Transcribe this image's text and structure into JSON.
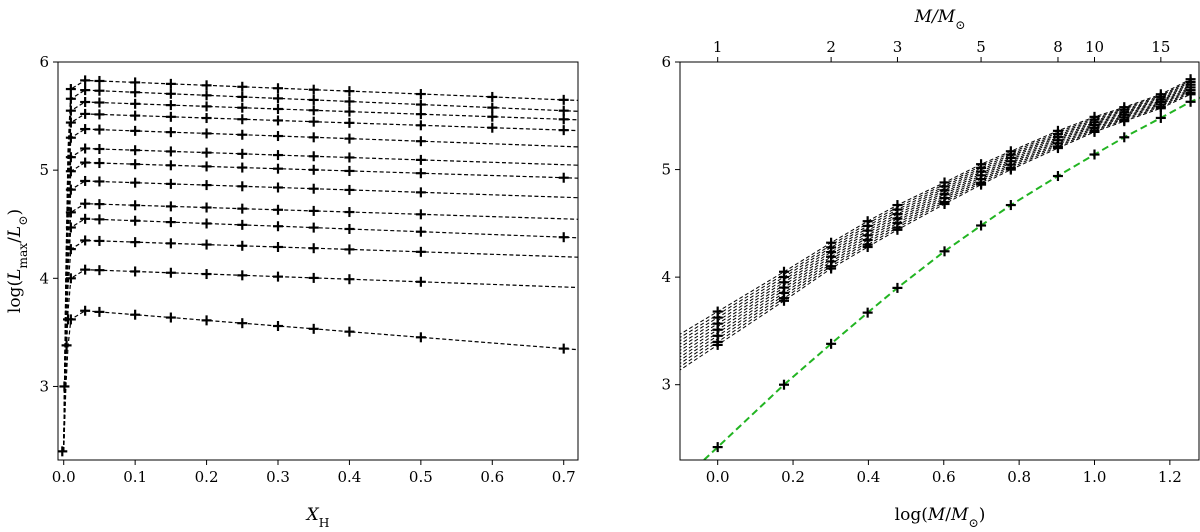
{
  "chart_data": [
    {
      "type": "line",
      "title": "",
      "xlabel": "X_H",
      "ylabel": "log(L_max/L_⊙)",
      "xlim": [
        -0.008,
        0.72
      ],
      "ylim": [
        2.32,
        6.0
      ],
      "xticks": [
        "0.0",
        "0.1",
        "0.2",
        "0.3",
        "0.4",
        "0.5",
        "0.6",
        "0.7"
      ],
      "yticks": [
        "3",
        "4",
        "5",
        "6"
      ],
      "grid": false,
      "legend": "none",
      "line_style": "dashed",
      "line_color": "#000000",
      "marker": "+",
      "marker_x": [
        0.01,
        0.03,
        0.05,
        0.1,
        0.15,
        0.2,
        0.25,
        0.3,
        0.35,
        0.4,
        0.5,
        0.6,
        0.7
      ],
      "initial_rise": [
        2.4,
        3.0,
        3.37
      ],
      "series": [
        {
          "start": 5.83,
          "end": 5.65
        },
        {
          "start": 5.74,
          "end": 5.55
        },
        {
          "start": 5.63,
          "end": 5.47
        },
        {
          "start": 5.52,
          "end": 5.37
        },
        {
          "start": 5.38,
          "end": 5.22
        },
        {
          "start": 5.2,
          "end": 5.05
        },
        {
          "start": 5.07,
          "end": 4.93
        },
        {
          "start": 4.9,
          "end": 4.75
        },
        {
          "start": 4.69,
          "end": 4.55
        },
        {
          "start": 4.55,
          "end": 4.38
        },
        {
          "start": 4.35,
          "end": 4.2
        },
        {
          "start": 4.08,
          "end": 3.92
        },
        {
          "start": 3.7,
          "end": 3.35
        }
      ]
    },
    {
      "type": "line",
      "title": "",
      "xlabel": "log(M/M_⊙)",
      "ylabel": "",
      "top_xlabel": "M/M_⊙",
      "xlim": [
        -0.1,
        1.28
      ],
      "ylim": [
        2.3,
        6.0
      ],
      "xticks": [
        "0.0",
        "0.2",
        "0.4",
        "0.6",
        "0.8",
        "1.0",
        "1.2"
      ],
      "yticks": [
        "3",
        "4",
        "5",
        "6"
      ],
      "top_ticks": [
        "1",
        "2",
        "3",
        "5",
        "8",
        "10",
        "15"
      ],
      "top_tick_masses": [
        1,
        2,
        3,
        5,
        8,
        10,
        15
      ],
      "grid": false,
      "legend": "none",
      "green_color": "#22b422",
      "green_series": {
        "x": [
          0.0,
          0.176,
          0.301,
          0.398,
          0.477,
          0.602,
          0.699,
          0.778,
          0.903,
          1.0,
          1.079,
          1.176,
          1.255
        ],
        "y": [
          2.42,
          3.0,
          3.38,
          3.67,
          3.9,
          4.24,
          4.48,
          4.67,
          4.94,
          5.14,
          5.3,
          5.48,
          5.63
        ]
      },
      "black_band": {
        "x": [
          0.0,
          0.176,
          0.301,
          0.398,
          0.477,
          0.602,
          0.699,
          0.778,
          0.903,
          1.0,
          1.079,
          1.176,
          1.255
        ],
        "upper": [
          3.68,
          4.05,
          4.32,
          4.52,
          4.67,
          4.88,
          5.05,
          5.17,
          5.36,
          5.49,
          5.58,
          5.7,
          5.84
        ],
        "lower": [
          3.37,
          3.78,
          4.08,
          4.28,
          4.44,
          4.68,
          4.86,
          5.0,
          5.2,
          5.35,
          5.45,
          5.57,
          5.7
        ],
        "n_curves": 12
      }
    }
  ]
}
